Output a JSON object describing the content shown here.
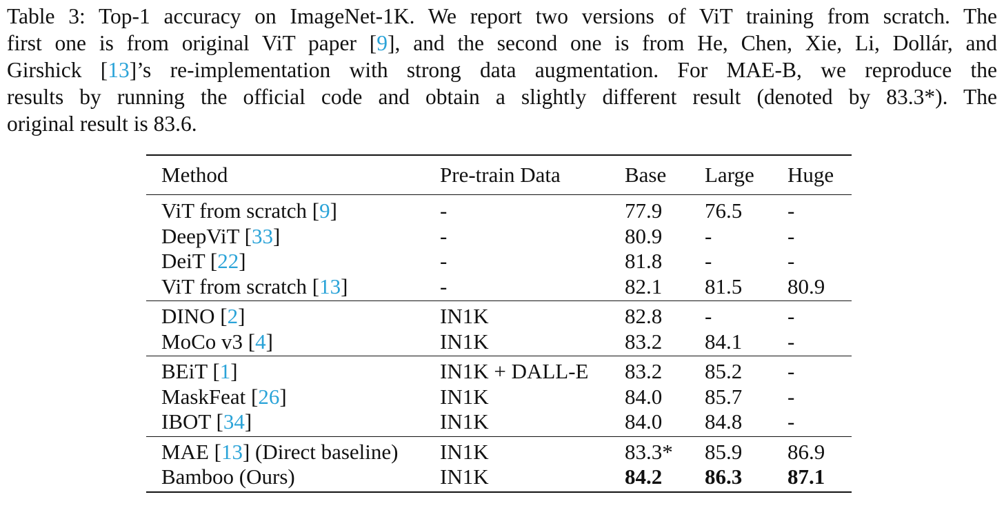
{
  "caption": {
    "label": "Table 3:",
    "lines": [
      [
        {
          "t": "Table 3: Top-1 accuracy on ImageNet-1K. We report two versions of ViT training from scratch. The"
        }
      ],
      [
        {
          "t": "first one is from original ViT paper ["
        },
        {
          "t": "9",
          "cite": true
        },
        {
          "t": "], and the second one is from He, Chen, Xie, Li, Dollár, and"
        }
      ],
      [
        {
          "t": "Girshick ["
        },
        {
          "t": "13",
          "cite": true
        },
        {
          "t": "]’s re-implementation with strong data augmentation. For MAE-B, we reproduce the"
        }
      ],
      [
        {
          "t": "results by running the official code and obtain a slightly different result (denoted by 83.3*).  The"
        }
      ],
      [
        {
          "t": "original result is 83.6."
        }
      ]
    ]
  },
  "table": {
    "columns": [
      "Method",
      "Pre-train Data",
      "Base",
      "Large",
      "Huge"
    ],
    "groups": [
      [
        {
          "method": "ViT from scratch [",
          "ref": "9",
          "suffix": "]",
          "data": "-",
          "base": "77.9",
          "large": "76.5",
          "huge": "-"
        },
        {
          "method": "DeepViT [",
          "ref": "33",
          "suffix": "]",
          "data": "-",
          "base": "80.9",
          "large": "-",
          "huge": "-"
        },
        {
          "method": "DeiT [",
          "ref": "22",
          "suffix": "]",
          "data": "-",
          "base": "81.8",
          "large": "-",
          "huge": "-"
        },
        {
          "method": "ViT from scratch [",
          "ref": "13",
          "suffix": "]",
          "data": "-",
          "base": "82.1",
          "large": "81.5",
          "huge": "80.9"
        }
      ],
      [
        {
          "method": "DINO [",
          "ref": "2",
          "suffix": "]",
          "data": "IN1K",
          "base": "82.8",
          "large": "-",
          "huge": "-"
        },
        {
          "method": "MoCo v3 [",
          "ref": "4",
          "suffix": "]",
          "data": "IN1K",
          "base": "83.2",
          "large": "84.1",
          "huge": "-"
        }
      ],
      [
        {
          "method": "BEiT [",
          "ref": "1",
          "suffix": "]",
          "data": "IN1K + DALL-E",
          "base": "83.2",
          "large": "85.2",
          "huge": "-"
        },
        {
          "method": "MaskFeat [",
          "ref": "26",
          "suffix": "]",
          "data": "IN1K",
          "base": "84.0",
          "large": "85.7",
          "huge": "-"
        },
        {
          "method": "IBOT [",
          "ref": "34",
          "suffix": "]",
          "data": "IN1K",
          "base": "84.0",
          "large": "84.8",
          "huge": "-"
        }
      ],
      [
        {
          "method": "MAE [",
          "ref": "13",
          "suffix": "] (Direct baseline)",
          "data": "IN1K",
          "base": "83.3*",
          "large": "85.9",
          "huge": "86.9"
        },
        {
          "method": "Bamboo (Ours)",
          "ref": "",
          "suffix": "",
          "data": "IN1K",
          "base": "84.2",
          "large": "86.3",
          "huge": "87.1",
          "bold_values": true
        }
      ]
    ]
  },
  "colors": {
    "citation": "#2aa3d8",
    "text": "#111111"
  }
}
